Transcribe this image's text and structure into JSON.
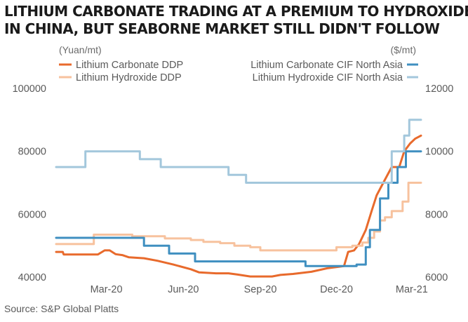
{
  "title_line1": "LITHIUM CARBONATE TRADING AT A PREMIUM TO HYDROXIDE",
  "title_line2": "IN CHINA, BUT SEABORNE MARKET STILL DIDN'T FOLLOW",
  "source": "Source: S&P Global Platts",
  "chart_data": {
    "type": "line",
    "left_axis": {
      "unit": "(Yuan/mt)",
      "range": [
        40000,
        100000
      ],
      "ticks": [
        "100000",
        "80000",
        "60000",
        "40000"
      ],
      "tick_values": [
        100000,
        80000,
        60000,
        40000
      ]
    },
    "right_axis": {
      "unit": "($/mt)",
      "range": [
        6000,
        12000
      ],
      "ticks": [
        "12000",
        "10000",
        "8000",
        "6000"
      ],
      "tick_values": [
        12000,
        10000,
        8000,
        6000
      ]
    },
    "x_range": [
      "2020-01-01",
      "2021-03-12"
    ],
    "x_ticks": [
      {
        "label": "Mar-20",
        "date": "2020-03-01"
      },
      {
        "label": "Jun-20",
        "date": "2020-06-01"
      },
      {
        "label": "Sep-20",
        "date": "2020-09-01"
      },
      {
        "label": "Dec-20",
        "date": "2020-12-01"
      },
      {
        "label": "Mar-21",
        "date": "2021-03-01"
      }
    ],
    "grid": false,
    "series": [
      {
        "name": "Lithium Carbonate DDP",
        "axis": "left",
        "color": "#e86a2c",
        "step": false,
        "points": [
          [
            "2020-01-01",
            48000
          ],
          [
            "2020-01-09",
            48000
          ],
          [
            "2020-01-10",
            47200
          ],
          [
            "2020-02-20",
            47200
          ],
          [
            "2020-02-28",
            48500
          ],
          [
            "2020-03-05",
            48500
          ],
          [
            "2020-03-12",
            47300
          ],
          [
            "2020-03-20",
            47000
          ],
          [
            "2020-03-28",
            46300
          ],
          [
            "2020-04-15",
            46000
          ],
          [
            "2020-05-01",
            45200
          ],
          [
            "2020-05-20",
            44000
          ],
          [
            "2020-06-10",
            42500
          ],
          [
            "2020-06-20",
            41500
          ],
          [
            "2020-07-10",
            41200
          ],
          [
            "2020-07-25",
            41200
          ],
          [
            "2020-08-05",
            40800
          ],
          [
            "2020-08-20",
            40200
          ],
          [
            "2020-09-15",
            40200
          ],
          [
            "2020-09-25",
            40700
          ],
          [
            "2020-10-10",
            41000
          ],
          [
            "2020-11-01",
            41700
          ],
          [
            "2020-11-20",
            42800
          ],
          [
            "2020-12-10",
            43500
          ],
          [
            "2020-12-15",
            48000
          ],
          [
            "2020-12-22",
            48500
          ],
          [
            "2020-12-28",
            50500
          ],
          [
            "2021-01-05",
            55000
          ],
          [
            "2021-01-12",
            61000
          ],
          [
            "2021-01-18",
            66000
          ],
          [
            "2021-01-24",
            69000
          ],
          [
            "2021-01-28",
            71000
          ],
          [
            "2021-02-01",
            73000
          ],
          [
            "2021-02-05",
            75000
          ],
          [
            "2021-02-14",
            75000
          ],
          [
            "2021-02-20",
            80000
          ],
          [
            "2021-02-27",
            82500
          ],
          [
            "2021-03-05",
            84000
          ],
          [
            "2021-03-12",
            85000
          ]
        ]
      },
      {
        "name": "Lithium Hydroxide DDP",
        "axis": "left",
        "color": "#f7c29e",
        "step": true,
        "points": [
          [
            "2020-01-01",
            50500
          ],
          [
            "2020-02-15",
            53500
          ],
          [
            "2020-04-01",
            53000
          ],
          [
            "2020-05-10",
            52300
          ],
          [
            "2020-06-10",
            51800
          ],
          [
            "2020-06-25",
            51200
          ],
          [
            "2020-07-15",
            50800
          ],
          [
            "2020-08-01",
            50000
          ],
          [
            "2020-08-20",
            49500
          ],
          [
            "2020-09-01",
            48500
          ],
          [
            "2020-11-01",
            48500
          ],
          [
            "2020-12-01",
            49500
          ],
          [
            "2020-12-20",
            50000
          ],
          [
            "2021-01-01",
            51000
          ],
          [
            "2021-01-08",
            52500
          ],
          [
            "2021-01-15",
            54500
          ],
          [
            "2021-01-22",
            58000
          ],
          [
            "2021-01-28",
            59000
          ],
          [
            "2021-02-05",
            61000
          ],
          [
            "2021-02-18",
            64000
          ],
          [
            "2021-02-25",
            70000
          ],
          [
            "2021-03-12",
            70000
          ]
        ]
      },
      {
        "name": "Lithium Carbonate CIF North Asia",
        "axis": "right",
        "color": "#3f8fc0",
        "step": true,
        "points": [
          [
            "2020-01-01",
            7250
          ],
          [
            "2020-04-15",
            7000
          ],
          [
            "2020-05-15",
            6750
          ],
          [
            "2020-06-15",
            6500
          ],
          [
            "2020-10-25",
            6350
          ],
          [
            "2020-12-25",
            6400
          ],
          [
            "2021-01-05",
            6950
          ],
          [
            "2021-01-10",
            7500
          ],
          [
            "2021-01-22",
            8500
          ],
          [
            "2021-02-01",
            9000
          ],
          [
            "2021-02-12",
            9500
          ],
          [
            "2021-02-22",
            10000
          ],
          [
            "2021-03-12",
            10000
          ]
        ]
      },
      {
        "name": "Lithium Hydroxide CIF North Asia",
        "axis": "right",
        "color": "#a3c7dc",
        "step": true,
        "points": [
          [
            "2020-01-01",
            9500
          ],
          [
            "2020-02-05",
            10000
          ],
          [
            "2020-04-10",
            9750
          ],
          [
            "2020-05-05",
            9500
          ],
          [
            "2020-07-25",
            9250
          ],
          [
            "2020-08-15",
            9000
          ],
          [
            "2021-02-05",
            10000
          ],
          [
            "2021-02-20",
            10500
          ],
          [
            "2021-02-26",
            11000
          ],
          [
            "2021-03-12",
            11000
          ]
        ]
      }
    ],
    "legend": {
      "placement": "top"
    }
  }
}
